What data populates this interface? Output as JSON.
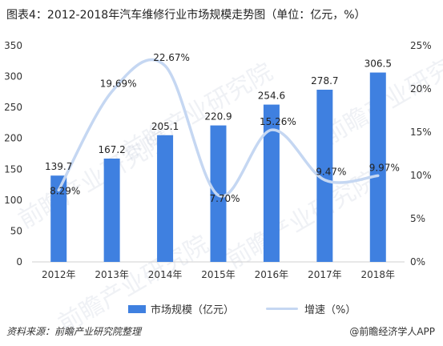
{
  "title": "图表4：2012-2018年汽车维修行业市场规模走势图（单位：亿元，%）",
  "source": "资料来源：前瞻产业研究院整理",
  "brand": "@前瞻经济学人APP",
  "watermark": "前瞻产业研究院",
  "colors": {
    "bar": "#3f80e0",
    "line": "#c5d7f2"
  },
  "chart_data": {
    "type": "bar",
    "title": "图表4：2012-2018年汽车维修行业市场规模走势图（单位：亿元，%）",
    "categories": [
      "2012年",
      "2013年",
      "2014年",
      "2015年",
      "2016年",
      "2017年",
      "2018年"
    ],
    "series": [
      {
        "name": "市场规模（亿元）",
        "type": "bar",
        "axis": "left",
        "values": [
          139.7,
          167.2,
          205.1,
          220.9,
          254.6,
          278.7,
          306.5
        ]
      },
      {
        "name": "增速（%）",
        "type": "line",
        "axis": "right",
        "values": [
          8.29,
          19.69,
          22.67,
          7.7,
          15.26,
          9.47,
          9.97
        ]
      }
    ],
    "bar_labels": [
      "139.7",
      "167.2",
      "205.1",
      "220.9",
      "254.6",
      "278.7",
      "306.5"
    ],
    "line_labels": [
      "8.29%",
      "19.69%",
      "22.67%",
      "7.70%",
      "15.26%",
      "9.47%",
      "9.97%"
    ],
    "y_left": {
      "min": 0,
      "max": 350,
      "ticks": [
        "0",
        "50",
        "100",
        "150",
        "200",
        "250",
        "300",
        "350"
      ]
    },
    "y_right": {
      "min": 0,
      "max": 25,
      "ticks": [
        "0%",
        "5%",
        "10%",
        "15%",
        "20%",
        "25%"
      ]
    },
    "legend_position": "bottom",
    "grid": false
  }
}
